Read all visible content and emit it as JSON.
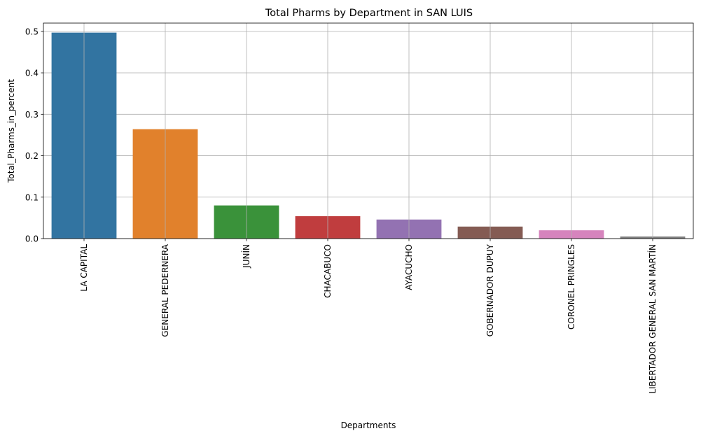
{
  "chart_data": {
    "type": "bar",
    "title": "Total Pharms by Department in SAN LUIS",
    "xlabel": "Departments",
    "ylabel": "Total_Pharms_in_percent",
    "categories": [
      "LA CAPITAL",
      "GENERAL PEDERNERA",
      "JUNÍN",
      "CHACABUCO",
      "AYACUCHO",
      "GOBERNADOR DUPUY",
      "CORONEL PRINGLES",
      "LIBERTADOR GENERAL SAN MARTÍN"
    ],
    "values": [
      0.497,
      0.264,
      0.08,
      0.054,
      0.046,
      0.029,
      0.02,
      0.005
    ],
    "colors": [
      "#3274a1",
      "#e1812c",
      "#3a923a",
      "#c03d3e",
      "#9372b2",
      "#845b53",
      "#d684bd",
      "#7f7f7f"
    ],
    "ylim": [
      0,
      0.52
    ],
    "yticks": [
      0.0,
      0.1,
      0.2,
      0.3,
      0.4,
      0.5
    ],
    "ytick_labels": [
      "0.0",
      "0.1",
      "0.2",
      "0.3",
      "0.4",
      "0.5"
    ],
    "grid": true
  }
}
